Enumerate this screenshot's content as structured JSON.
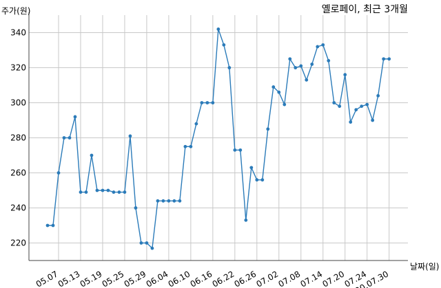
{
  "chart_data": {
    "type": "line",
    "title": "옐로페이, 최근 3개월",
    "xlabel": "날짜(일)",
    "ylabel": "주가(원)",
    "ylim": [
      210,
      350
    ],
    "yticks": [
      220,
      240,
      260,
      280,
      300,
      320,
      340
    ],
    "grid": true,
    "line_color": "#2b7bb9",
    "x_ticks": [
      {
        "index": 2,
        "label": "05.07"
      },
      {
        "index": 6,
        "label": "05.13"
      },
      {
        "index": 10,
        "label": "05.19"
      },
      {
        "index": 14,
        "label": "05.25"
      },
      {
        "index": 18,
        "label": "05.29"
      },
      {
        "index": 22,
        "label": "06.04"
      },
      {
        "index": 26,
        "label": "06.10"
      },
      {
        "index": 30,
        "label": "06.16"
      },
      {
        "index": 34,
        "label": "06.22"
      },
      {
        "index": 38,
        "label": "06.26"
      },
      {
        "index": 42,
        "label": "07.02"
      },
      {
        "index": 46,
        "label": "07.08"
      },
      {
        "index": 50,
        "label": "07.14"
      },
      {
        "index": 54,
        "label": "07.20"
      },
      {
        "index": 58,
        "label": "07.24"
      },
      {
        "index": 62,
        "label": "20.07.30"
      }
    ],
    "values": [
      230,
      230,
      260,
      280,
      280,
      292,
      249,
      249,
      270,
      250,
      250,
      250,
      249,
      249,
      249,
      281,
      240,
      220,
      220,
      217,
      244,
      244,
      244,
      244,
      244,
      275,
      275,
      288,
      300,
      300,
      300,
      342,
      333,
      320,
      273,
      273,
      233,
      263,
      256,
      256,
      285,
      309,
      306,
      299,
      325,
      320,
      321,
      313,
      322,
      332,
      333,
      324,
      300,
      298,
      316,
      289,
      296,
      298,
      299,
      290,
      304,
      325,
      325
    ]
  }
}
